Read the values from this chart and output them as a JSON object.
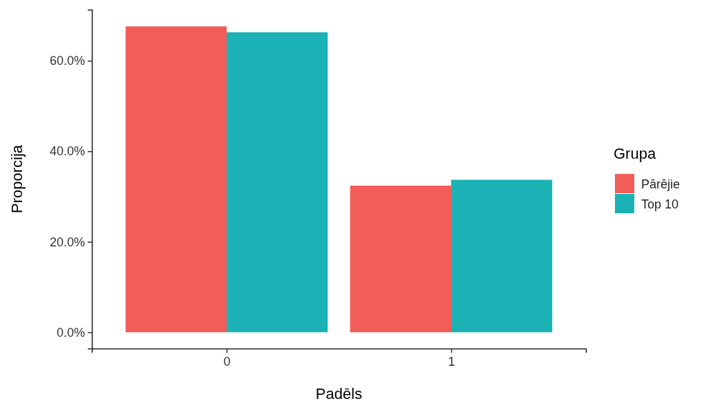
{
  "chart_data": {
    "type": "bar",
    "xlabel": "Padēls",
    "ylabel": "Proporcija",
    "legend_title": "Grupa",
    "categories": [
      "0",
      "1"
    ],
    "series": [
      {
        "name": "Pārējie",
        "color": "#f25d5a",
        "values": [
          67.6,
          32.4
        ]
      },
      {
        "name": "Top 10",
        "color": "#1ab2b5",
        "values": [
          66.3,
          33.7
        ]
      }
    ],
    "ylim": [
      -3.6,
      71.3
    ],
    "yticks": [
      {
        "value": 0,
        "label": "0.0%"
      },
      {
        "value": 20,
        "label": "20.0%"
      },
      {
        "value": 40,
        "label": "40.0%"
      },
      {
        "value": 60,
        "label": "60.0%"
      }
    ],
    "grid": false,
    "legend": "right"
  }
}
